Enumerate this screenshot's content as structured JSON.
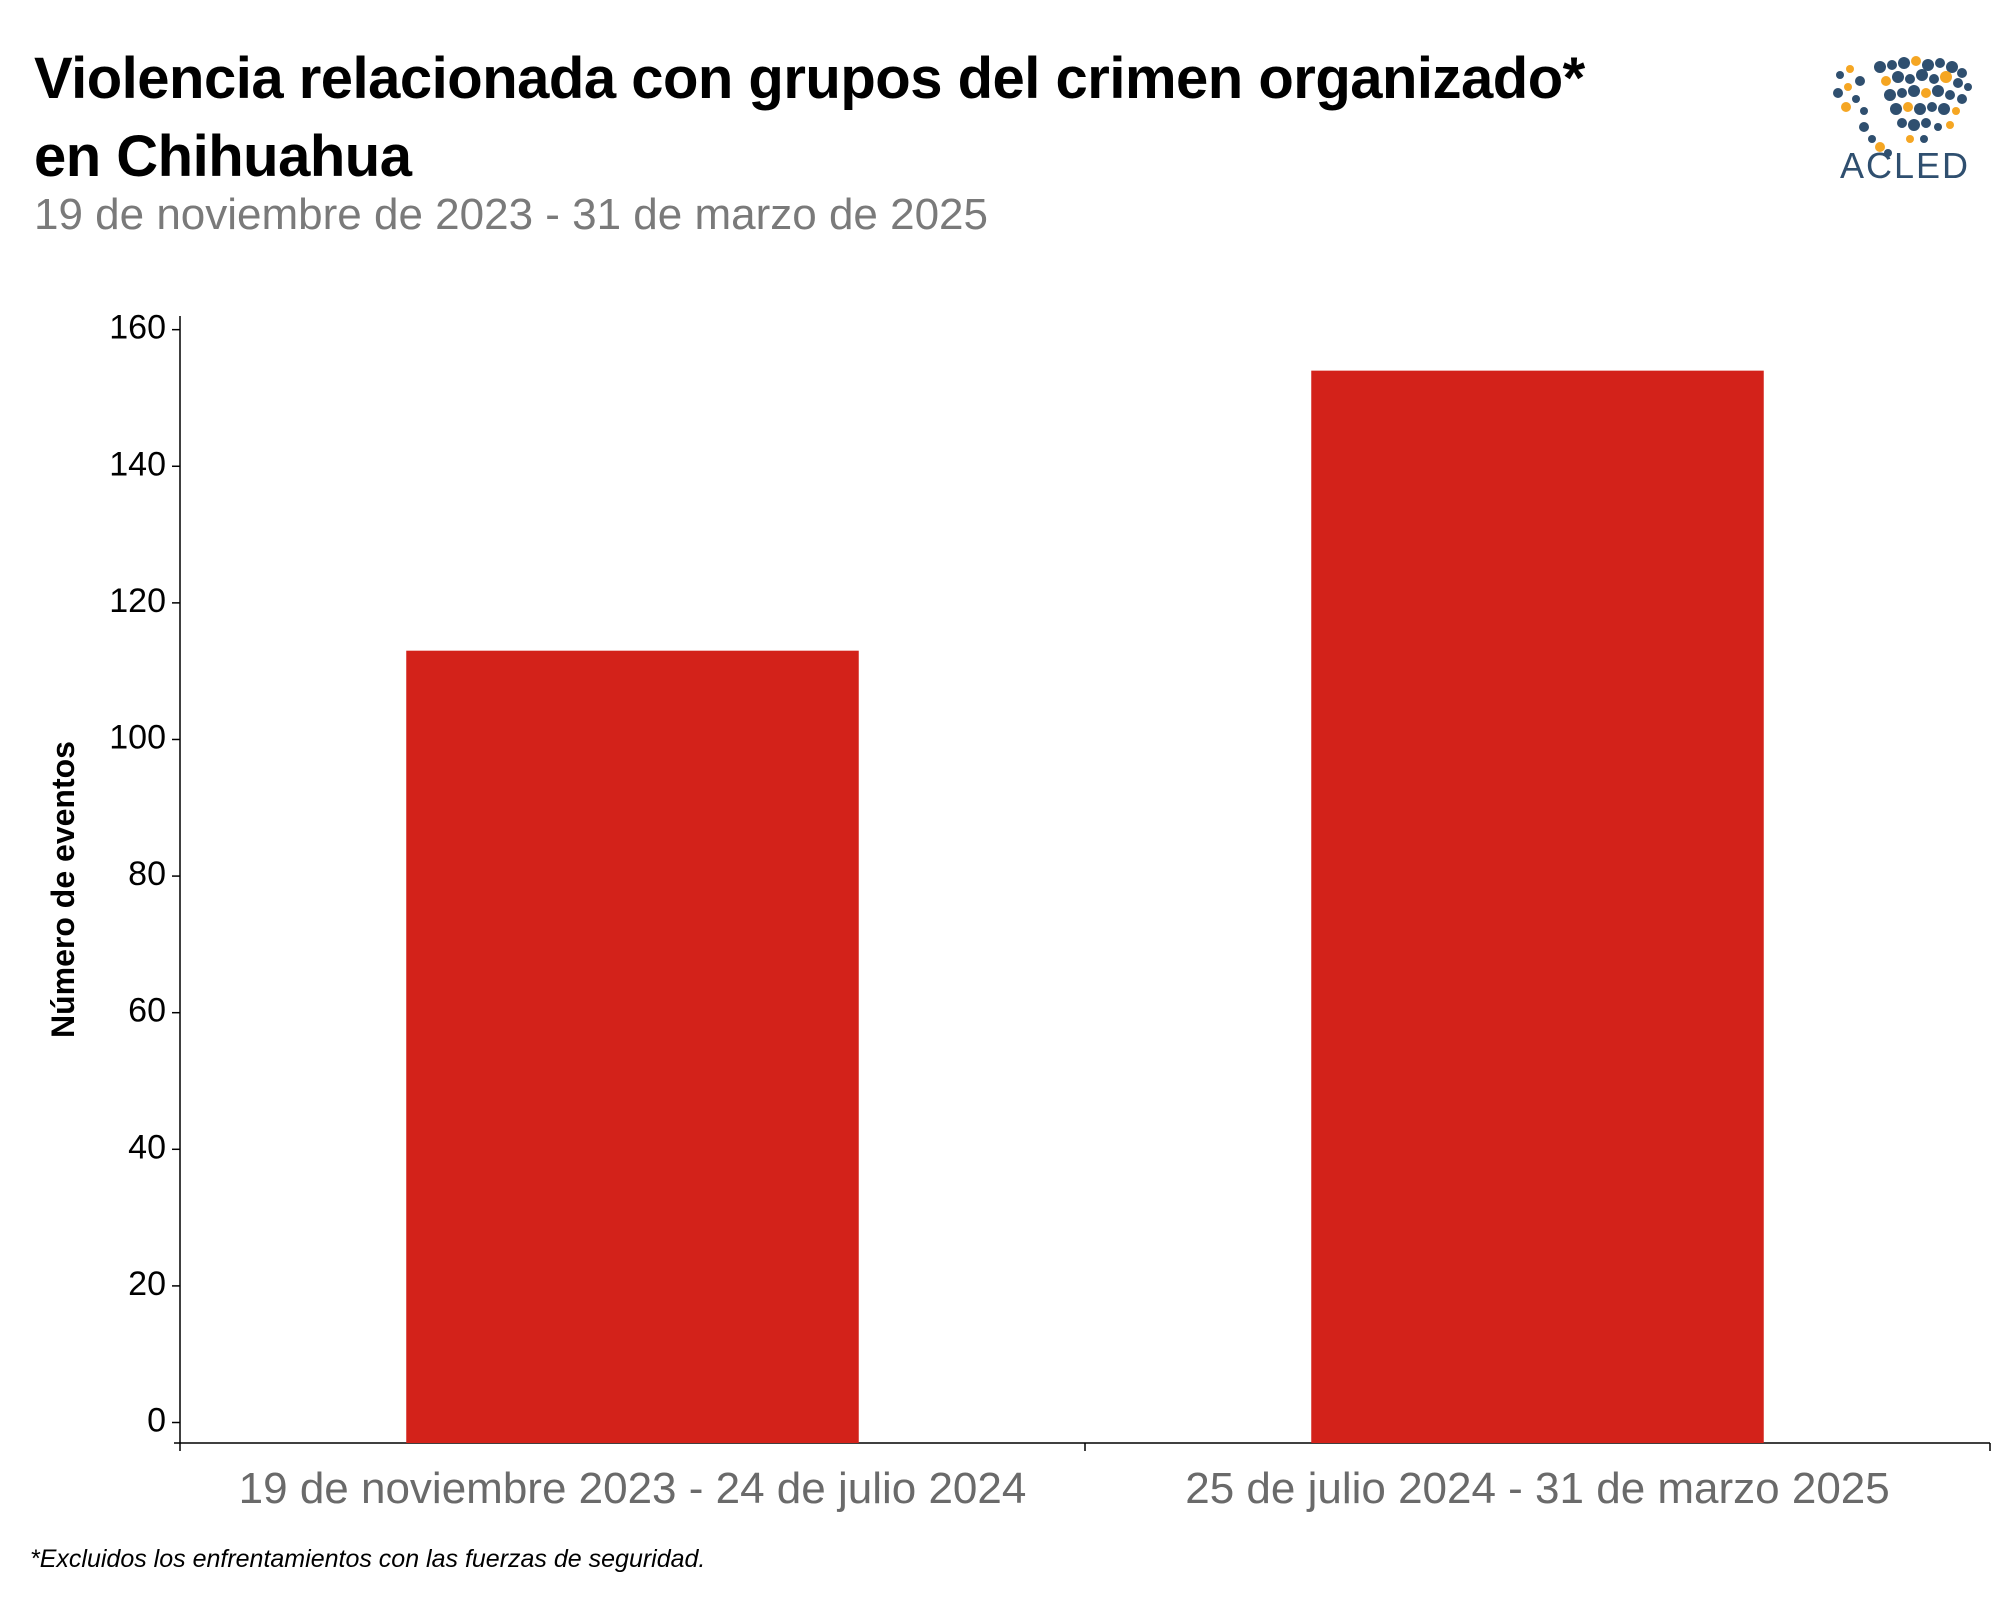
{
  "header": {
    "title_line1": "Violencia relacionada con grupos del crimen organizado*",
    "title_line2": "en Chihuahua",
    "subtitle": "19 de noviembre de 2023 - 31 de marzo de 2025",
    "logo_text": "ACLED"
  },
  "footnote": "*Excluidos los enfrentamientos con las fuerzas de seguridad.",
  "colors": {
    "bar": "#d3221a",
    "logo_blue": "#2f4f6f",
    "logo_orange": "#f5a623"
  },
  "chart_data": {
    "type": "bar",
    "categories": [
      "19 de noviembre 2023 - 24 de julio 2024",
      "25 de julio 2024 - 31 de marzo 2025"
    ],
    "values": [
      113,
      154
    ],
    "title": "Violencia relacionada con grupos del crimen organizado* en Chihuahua",
    "subtitle": "19 de noviembre de 2023 - 31 de marzo de 2025",
    "xlabel": "",
    "ylabel": "Número de eventos",
    "yticks": [
      0,
      20,
      40,
      60,
      80,
      100,
      120,
      140,
      160
    ],
    "ylim": [
      -3,
      162
    ],
    "grid": false,
    "legend": "none"
  }
}
